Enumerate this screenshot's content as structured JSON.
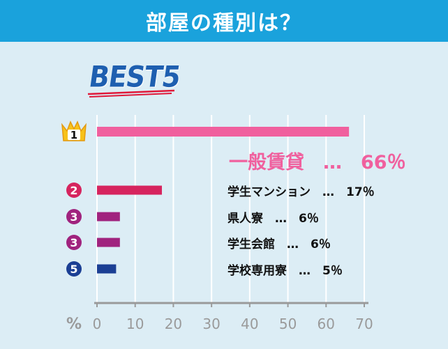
{
  "header": {
    "title": "部屋の種別は？"
  },
  "badge": {
    "text": "BEST5"
  },
  "colors": {
    "header_bg": "#1aa2dc",
    "background": "#dcedf5",
    "bar_1": "#f0609e",
    "bar_2": "#d6245e",
    "bar_3": "#a0237e",
    "bar_4": "#a0237e",
    "bar_5": "#1b3f94",
    "crown": "#f7c21a"
  },
  "chart_data": {
    "type": "bar",
    "orientation": "horizontal",
    "categories": [
      "一般賃貸",
      "学生マンション",
      "県人寮",
      "学生会館",
      "学校専用寮"
    ],
    "ranks": [
      "1",
      "2",
      "3",
      "3",
      "5"
    ],
    "values": [
      66,
      17,
      6,
      6,
      5
    ],
    "labels": [
      "一般賃貸　…　66％",
      "学生マンション　…　17％",
      "県人寮　…　6％",
      "学生会館　…　6％",
      "学校専用寮　…　5％"
    ],
    "xlabel": "%",
    "xlim": [
      0,
      70
    ],
    "xticks": [
      "0",
      "10",
      "20",
      "30",
      "40",
      "50",
      "60",
      "70"
    ],
    "grid": true
  }
}
